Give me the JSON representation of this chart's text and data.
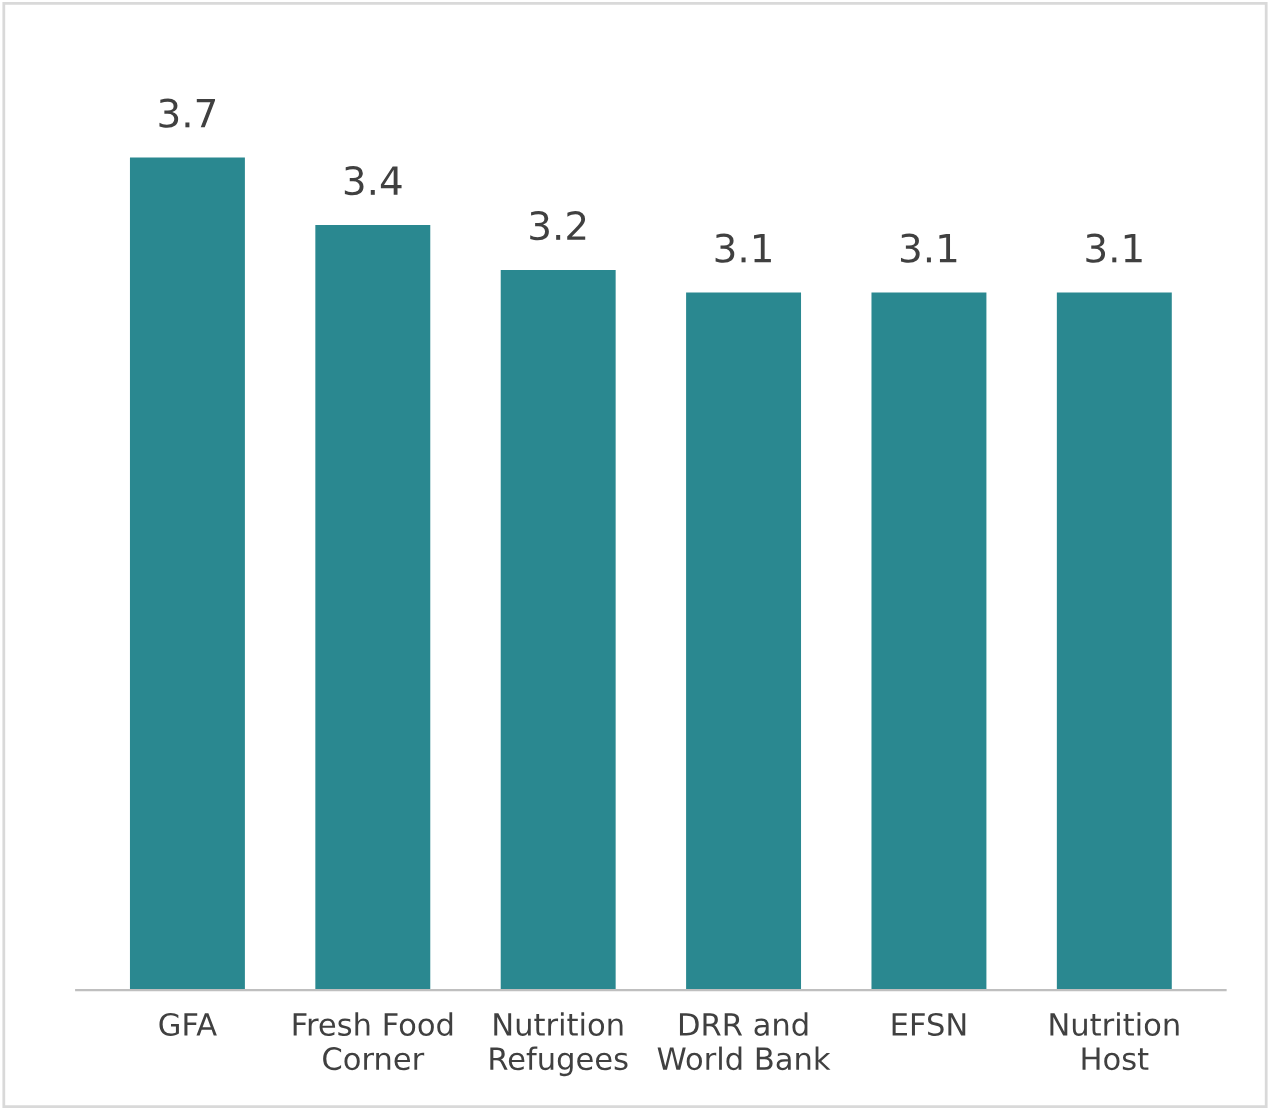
{
  "chart_data": {
    "type": "bar",
    "categories": [
      "GFA",
      "Fresh Food\nCorner",
      "Nutrition\nRefugees",
      "DRR and\nWorld Bank",
      "EFSN",
      "Nutrition\nHost"
    ],
    "values": [
      3.7,
      3.4,
      3.2,
      3.1,
      3.1,
      3.1
    ],
    "color": "#2a8890",
    "data_labels": true,
    "grid": false,
    "legend": false
  }
}
